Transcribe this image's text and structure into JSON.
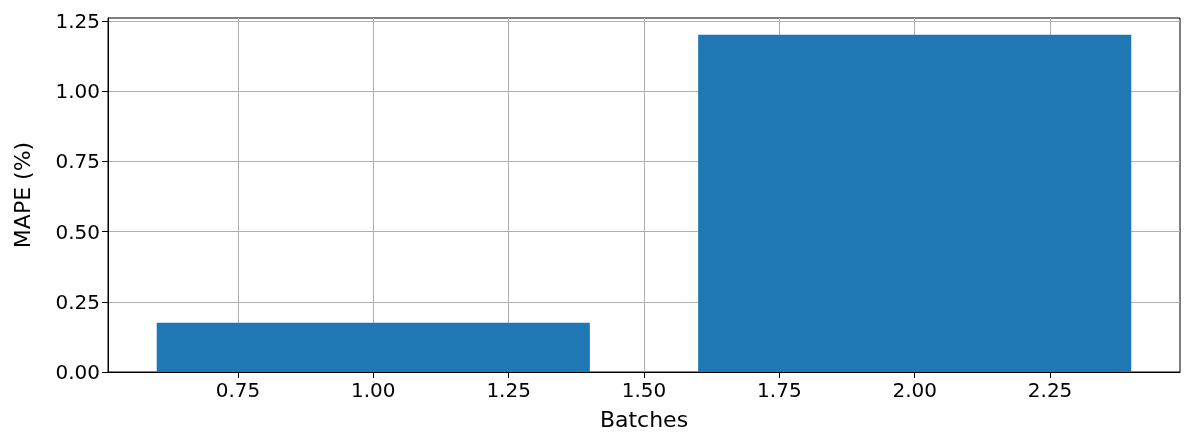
{
  "chart_data": {
    "type": "bar",
    "xlabel": "Batches",
    "ylabel": "MAPE (%)",
    "x": [
      1,
      2
    ],
    "values": [
      0.175,
      1.2
    ],
    "color": "#1f77b4",
    "xlim": [
      0.51,
      2.49
    ],
    "xticks": [
      {
        "value": 0.75,
        "label": "0.75"
      },
      {
        "value": 1,
        "label": "1.00"
      },
      {
        "value": 1.25,
        "label": "1.25"
      },
      {
        "value": 1.5,
        "label": "1.50"
      },
      {
        "value": 1.75,
        "label": "1.75"
      },
      {
        "value": 2,
        "label": "2.00"
      },
      {
        "value": 2.25,
        "label": "2.25"
      }
    ],
    "ylim": [
      0,
      1.26
    ],
    "yticks": [
      {
        "value": 0,
        "label": "0.00"
      },
      {
        "value": 0.25,
        "label": "0.25"
      },
      {
        "value": 0.5,
        "label": "0.50"
      },
      {
        "value": 0.75,
        "label": "0.75"
      },
      {
        "value": 1,
        "label": "1.00"
      },
      {
        "value": 1.25,
        "label": "1.25"
      }
    ],
    "grid": true
  }
}
